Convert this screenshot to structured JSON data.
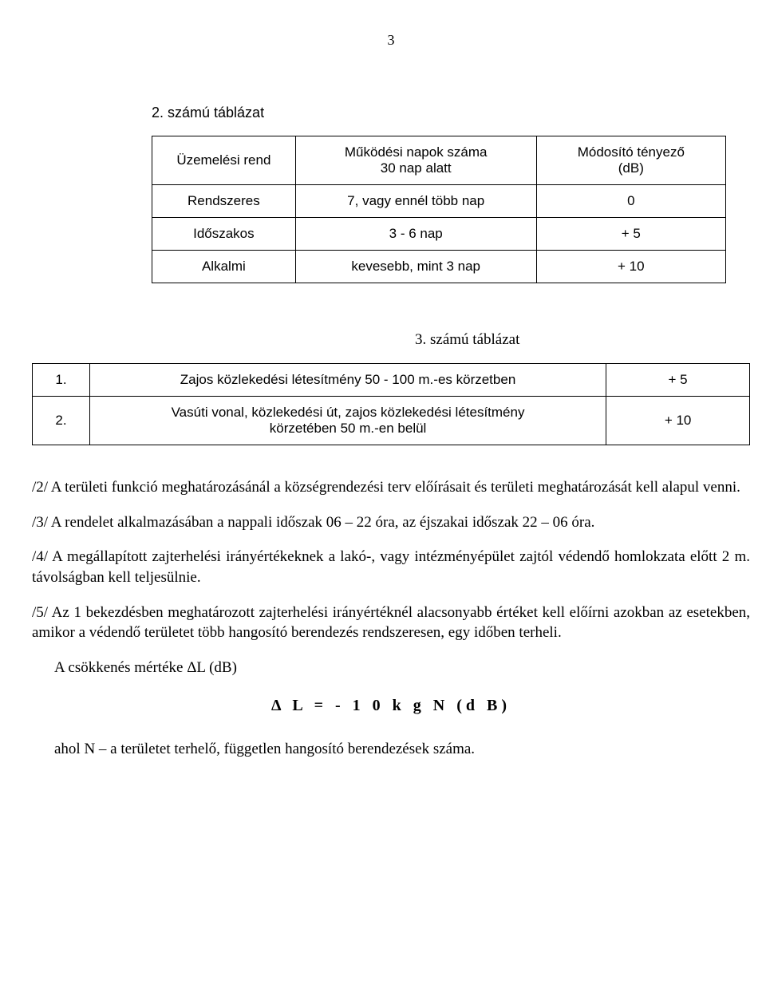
{
  "page_number": "3",
  "table2": {
    "caption": "2. számú táblázat",
    "headers": [
      "Üzemelési rend",
      "Működési napok száma\n30 nap alatt",
      "Módosító tényező\n(dB)"
    ],
    "rows": [
      [
        "Rendszeres",
        "7, vagy ennél több nap",
        "0"
      ],
      [
        "Időszakos",
        "3 - 6 nap",
        "+ 5"
      ],
      [
        "Alkalmi",
        "kevesebb, mint 3 nap",
        "+ 10"
      ]
    ]
  },
  "table3": {
    "caption": "3. számú táblázat",
    "rows": [
      [
        "1.",
        "Zajos közlekedési létesítmény 50 - 100 m.-es körzetben",
        "+ 5"
      ],
      [
        "2.",
        "Vasúti vonal, közlekedési út, zajos közlekedési létesítmény\nkörzetében 50 m.-en belül",
        "+ 10"
      ]
    ]
  },
  "paragraphs": {
    "p2": "/2/ A területi funkció meghatározásánál a községrendezési terv előírásait és területi meghatározását kell alapul venni.",
    "p3": "/3/ A rendelet alkalmazásában a nappali időszak 06 – 22 óra, az éjszakai időszak 22 – 06 óra.",
    "p4": "/4/ A megállapított zajterhelési irányértékeknek a lakó-, vagy intézményépület zajtól védendő homlokzata előtt 2 m. távolságban kell teljesülnie.",
    "p5": "/5/ Az 1 bekezdésben meghatározott zajterhelési irányértéknél alacsonyabb értéket kell előírni azokban az esetekben, amikor a védendő területet több hangosító berendezés rendszeresen, egy időben terheli.",
    "p_reduce": "A csökkenés mértéke ΔL (dB)",
    "formula": "Δ L = - 1 0 k g N (d B)",
    "p_where": "ahol N – a területet terhelő, független hangosító berendezések száma."
  }
}
